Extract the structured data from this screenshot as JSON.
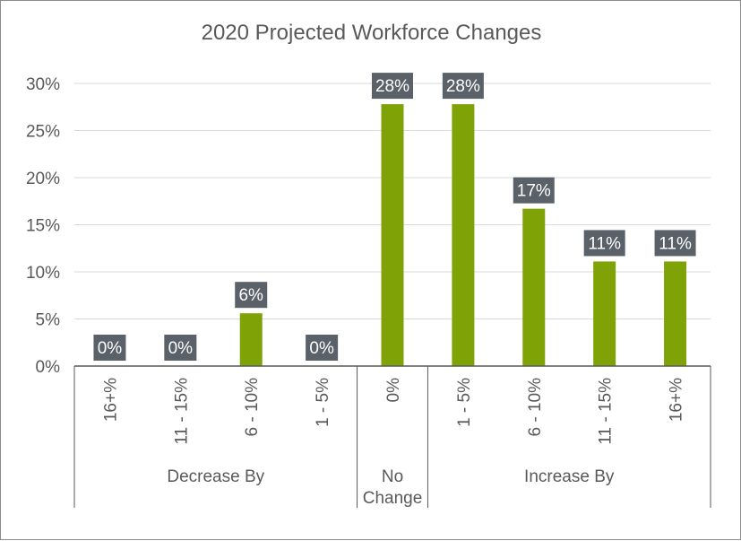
{
  "chart_data": {
    "type": "bar",
    "title": "2020 Projected Workforce Changes",
    "categories": [
      "16+%",
      "11 - 15%",
      "6 - 10%",
      "1 - 5%",
      "0%",
      "1 - 5%",
      "6 - 10%",
      "11 - 15%",
      "16+%"
    ],
    "values": [
      0,
      0,
      5.6,
      0,
      27.8,
      27.8,
      16.7,
      11.1,
      11.1
    ],
    "data_labels": [
      "0%",
      "0%",
      "6%",
      "0%",
      "28%",
      "28%",
      "17%",
      "11%",
      "11%"
    ],
    "groups": [
      {
        "label": "Decrease By",
        "count": 4
      },
      {
        "label": "No Change",
        "count": 1
      },
      {
        "label": "Increase By",
        "count": 4
      }
    ],
    "y_ticks": [
      "0%",
      "5%",
      "10%",
      "15%",
      "20%",
      "25%",
      "30%"
    ],
    "ylim": [
      0,
      30
    ],
    "grid": true,
    "legend": "none",
    "colors": {
      "bar": "#7fa207",
      "label_bg": "#5a6169",
      "grid": "#d9d9d9",
      "axis": "#595959"
    }
  }
}
